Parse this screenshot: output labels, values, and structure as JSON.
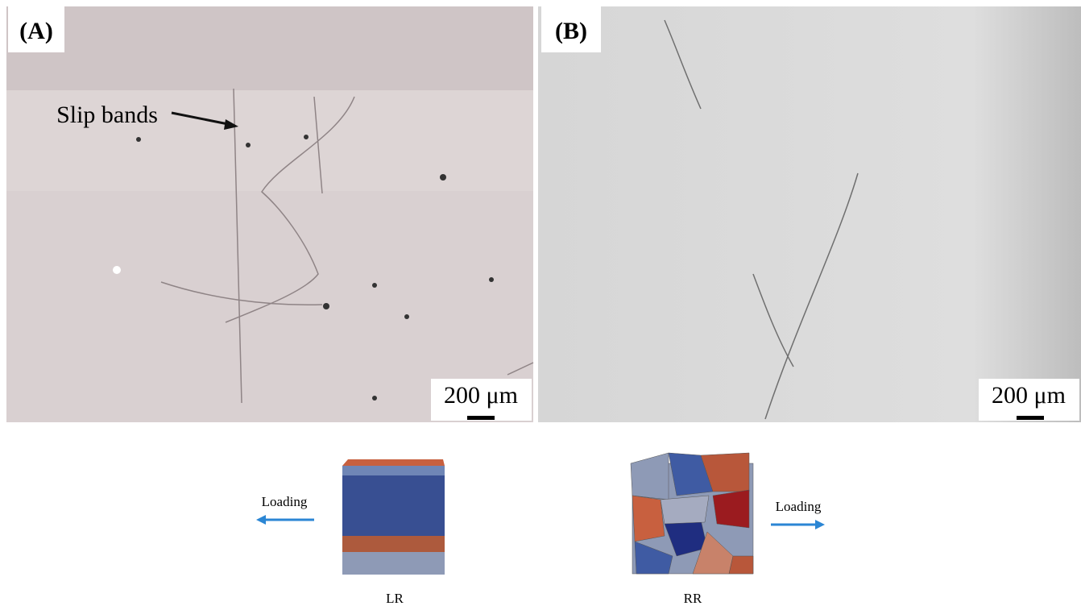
{
  "panels": [
    {
      "label": "(A)",
      "annotation": "Slip bands",
      "scale_bar": "200 μm"
    },
    {
      "label": "(B)",
      "scale_bar": "200 μm"
    }
  ],
  "models": [
    {
      "name": "LR",
      "loading": "Loading"
    },
    {
      "name": "RR",
      "loading": "Loading"
    }
  ]
}
